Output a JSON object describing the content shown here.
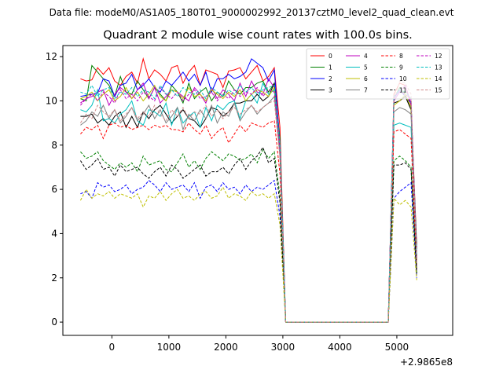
{
  "figure": {
    "suptitle": "Data file: modeM0/AS1A05_180T01_9000002992_20137cztM0_level2_quad_clean.evt",
    "axis_offset_label": "+2.9865e8"
  },
  "chart_data": {
    "type": "line",
    "title": "Quadrant 2 module wise count rates with 100.0s bins.",
    "xlabel": "",
    "ylabel": "",
    "xlim": [
      -860,
      5980
    ],
    "ylim": [
      -0.6,
      12.5
    ],
    "x_ticks": [
      0,
      1000,
      2000,
      3000,
      4000,
      5000
    ],
    "y_ticks": [
      0,
      2,
      4,
      6,
      8,
      10,
      12
    ],
    "grid": false,
    "legend_position": "top-right",
    "legend_columns": 4,
    "x_start": -551,
    "x_step": 100,
    "series": [
      {
        "name": "0",
        "color": "#ff0000",
        "dash": "solid",
        "values": [
          11.0,
          10.9,
          10.95,
          11.5,
          11.2,
          11.5,
          10.9,
          10.7,
          11.1,
          11.3,
          10.8,
          11.9,
          11.0,
          11.4,
          11.2,
          10.9,
          11.5,
          11.6,
          10.8,
          11.3,
          11.6,
          10.7,
          11.4,
          11.3,
          11.2,
          10.6,
          11.35,
          11.4,
          11.5,
          11.0,
          11.3,
          11.6,
          10.9,
          11.1,
          11.5,
          8.8,
          0.0,
          0,
          0,
          0,
          0,
          0,
          0,
          0,
          0,
          0,
          0,
          0,
          0,
          0,
          0,
          0,
          0,
          0,
          0,
          10.3,
          10.8,
          10.7,
          9.8,
          3.5
        ]
      },
      {
        "name": "1",
        "color": "#008000",
        "dash": "solid",
        "values": [
          10.1,
          10.0,
          11.6,
          11.3,
          11.0,
          10.7,
          10.2,
          11.1,
          10.4,
          10.3,
          10.9,
          10.5,
          10.1,
          10.6,
          10.3,
          10.0,
          10.7,
          10.4,
          9.9,
          10.8,
          10.1,
          10.4,
          10.6,
          10.0,
          10.4,
          10.2,
          10.9,
          10.5,
          10.3,
          10.6,
          10.6,
          10.8,
          10.9,
          10.4,
          10.8,
          8.3,
          0.0,
          0,
          0,
          0,
          0,
          0,
          0,
          0,
          0,
          0,
          0,
          0,
          0,
          0,
          0,
          0,
          0,
          0,
          0,
          10.1,
          10.6,
          10.3,
          9.6,
          3.3
        ]
      },
      {
        "name": "2",
        "color": "#0000ff",
        "dash": "solid",
        "values": [
          10.2,
          10.25,
          10.3,
          10.35,
          11.0,
          10.9,
          10.2,
          10.7,
          10.8,
          11.2,
          10.5,
          10.7,
          11.0,
          10.6,
          10.4,
          10.9,
          10.7,
          11.0,
          11.3,
          10.9,
          11.2,
          10.7,
          11.3,
          10.4,
          11.0,
          11.0,
          11.2,
          11.0,
          11.1,
          11.3,
          11.9,
          11.7,
          11.5,
          10.9,
          11.4,
          8.0,
          0.0,
          0,
          0,
          0,
          0,
          0,
          0,
          0,
          0,
          0,
          0,
          0,
          0,
          0,
          0,
          0,
          0,
          0,
          0,
          10.1,
          10.5,
          10.2,
          9.9,
          3.0
        ]
      },
      {
        "name": "3",
        "color": "#000000",
        "dash": "solid",
        "values": [
          9.3,
          9.3,
          9.4,
          9.0,
          9.2,
          8.9,
          9.3,
          9.5,
          8.8,
          9.3,
          8.8,
          9.5,
          9.2,
          9.6,
          9.8,
          9.4,
          9.0,
          9.3,
          9.6,
          9.2,
          9.1,
          8.8,
          9.2,
          9.7,
          9.6,
          9.3,
          9.5,
          9.9,
          9.9,
          10.0,
          10.0,
          10.3,
          10.0,
          10.2,
          10.8,
          7.6,
          0.0,
          0,
          0,
          0,
          0,
          0,
          0,
          0,
          0,
          0,
          0,
          0,
          0,
          0,
          0,
          0,
          0,
          0,
          0,
          9.9,
          10.0,
          10.2,
          9.6,
          2.9
        ]
      },
      {
        "name": "4",
        "color": "#bf00bf",
        "dash": "solid",
        "values": [
          9.9,
          10.1,
          10.2,
          10.4,
          10.5,
          9.8,
          10.3,
          10.6,
          10.4,
          10.1,
          10.5,
          10.8,
          10.1,
          10.6,
          9.9,
          10.2,
          10.5,
          10.4,
          10.2,
          10.0,
          10.6,
          10.3,
          9.9,
          10.6,
          10.1,
          10.5,
          10.3,
          10.0,
          10.8,
          10.2,
          10.9,
          10.4,
          10.3,
          11.0,
          10.6,
          8.0,
          0.0,
          0,
          0,
          0,
          0,
          0,
          0,
          0,
          0,
          0,
          0,
          0,
          0,
          0,
          0,
          0,
          0,
          0,
          0,
          10.0,
          10.4,
          10.7,
          9.9,
          2.8
        ]
      },
      {
        "name": "5",
        "color": "#00bfbf",
        "dash": "solid",
        "values": [
          9.6,
          9.5,
          9.8,
          10.5,
          9.1,
          9.2,
          9.0,
          9.4,
          9.6,
          10.0,
          9.1,
          8.9,
          9.6,
          9.5,
          9.3,
          9.9,
          8.9,
          9.7,
          9.0,
          9.3,
          9.5,
          8.8,
          9.7,
          9.1,
          9.8,
          9.6,
          9.9,
          10.0,
          9.2,
          10.0,
          10.3,
          9.9,
          10.8,
          10.3,
          10.5,
          7.7,
          0.0,
          0,
          0,
          0,
          0,
          0,
          0,
          0,
          0,
          0,
          0,
          0,
          0,
          0,
          0,
          0,
          0,
          0,
          0,
          8.9,
          9.0,
          8.9,
          8.8,
          2.6
        ]
      },
      {
        "name": "6",
        "color": "#bfbf00",
        "dash": "solid",
        "values": [
          10.1,
          10.2,
          10.4,
          10.0,
          10.3,
          10.5,
          10.0,
          10.2,
          10.6,
          10.1,
          10.4,
          10.0,
          10.3,
          10.7,
          10.2,
          10.0,
          10.5,
          10.4,
          10.1,
          10.6,
          10.2,
          10.3,
          10.0,
          10.5,
          10.3,
          10.1,
          10.4,
          10.2,
          10.5,
          10.0,
          10.3,
          10.5,
          10.4,
          10.2,
          10.6,
          7.9,
          0.0,
          0,
          0,
          0,
          0,
          0,
          0,
          0,
          0,
          0,
          0,
          0,
          0,
          0,
          0,
          0,
          0,
          0,
          0,
          9.8,
          10.0,
          10.3,
          9.7,
          2.7
        ]
      },
      {
        "name": "7",
        "color": "#808080",
        "dash": "solid",
        "values": [
          8.9,
          9.1,
          9.5,
          9.3,
          9.8,
          9.2,
          9.6,
          9.0,
          9.3,
          9.7,
          9.1,
          9.4,
          9.8,
          9.2,
          9.6,
          9.0,
          9.3,
          9.7,
          8.7,
          9.4,
          9.1,
          9.6,
          9.2,
          9.8,
          9.0,
          9.5,
          9.3,
          9.9,
          9.1,
          9.5,
          9.8,
          9.4,
          9.7,
          9.9,
          10.2,
          7.5,
          0.0,
          0,
          0,
          0,
          0,
          0,
          0,
          0,
          0,
          0,
          0,
          0,
          0,
          0,
          0,
          0,
          0,
          0,
          0,
          9.5,
          9.7,
          9.6,
          9.4,
          2.5
        ]
      },
      {
        "name": "8",
        "color": "#ff0000",
        "dash": "dashed",
        "values": [
          8.5,
          8.8,
          8.7,
          8.9,
          8.3,
          8.9,
          9.0,
          8.8,
          8.9,
          8.7,
          8.8,
          8.9,
          8.7,
          8.9,
          8.8,
          8.9,
          8.7,
          8.7,
          8.6,
          9.0,
          8.7,
          8.5,
          8.9,
          8.3,
          8.6,
          8.8,
          8.1,
          8.5,
          8.9,
          8.6,
          9.0,
          8.9,
          8.8,
          9.0,
          9.1,
          6.7,
          0.0,
          0,
          0,
          0,
          0,
          0,
          0,
          0,
          0,
          0,
          0,
          0,
          0,
          0,
          0,
          0,
          0,
          0,
          0,
          8.6,
          8.7,
          8.5,
          8.3,
          2.4
        ]
      },
      {
        "name": "9",
        "color": "#008000",
        "dash": "dashed",
        "values": [
          7.7,
          7.4,
          7.5,
          7.7,
          7.3,
          7.1,
          6.9,
          7.2,
          7.0,
          7.2,
          6.8,
          7.5,
          7.1,
          7.2,
          7.3,
          6.9,
          6.8,
          7.2,
          7.6,
          7.0,
          7.3,
          6.9,
          7.4,
          7.7,
          7.5,
          7.3,
          7.6,
          7.5,
          7.3,
          7.4,
          7.6,
          7.2,
          7.8,
          7.4,
          7.7,
          5.7,
          0.0,
          0,
          0,
          0,
          0,
          0,
          0,
          0,
          0,
          0,
          0,
          0,
          0,
          0,
          0,
          0,
          0,
          0,
          0,
          7.3,
          7.5,
          7.3,
          7.0,
          2.2
        ]
      },
      {
        "name": "10",
        "color": "#0000ff",
        "dash": "dashed",
        "values": [
          5.8,
          5.9,
          5.6,
          6.3,
          6.1,
          6.2,
          5.9,
          6.0,
          6.2,
          5.8,
          6.0,
          6.1,
          6.4,
          6.2,
          5.9,
          6.3,
          6.0,
          6.1,
          6.2,
          5.9,
          6.3,
          5.6,
          6.1,
          6.2,
          5.9,
          6.3,
          6.0,
          6.1,
          5.8,
          6.2,
          5.9,
          6.1,
          6.0,
          6.2,
          6.4,
          4.8,
          0.0,
          0,
          0,
          0,
          0,
          0,
          0,
          0,
          0,
          0,
          0,
          0,
          0,
          0,
          0,
          0,
          0,
          0,
          0,
          5.6,
          5.9,
          6.1,
          6.3,
          2.0
        ]
      },
      {
        "name": "11",
        "color": "#000000",
        "dash": "dashed",
        "values": [
          7.3,
          6.9,
          7.1,
          7.4,
          6.9,
          7.0,
          6.6,
          7.1,
          6.8,
          6.9,
          7.0,
          6.7,
          6.5,
          6.8,
          7.0,
          6.6,
          7.1,
          6.9,
          6.5,
          6.7,
          6.9,
          7.1,
          6.6,
          6.8,
          6.8,
          7.0,
          6.7,
          7.1,
          7.4,
          6.9,
          7.3,
          7.5,
          7.9,
          7.2,
          7.4,
          5.4,
          0.0,
          0,
          0,
          0,
          0,
          0,
          0,
          0,
          0,
          0,
          0,
          0,
          0,
          0,
          0,
          0,
          0,
          0,
          0,
          7.1,
          7.1,
          7.2,
          6.9,
          2.2
        ]
      },
      {
        "name": "12",
        "color": "#bf00bf",
        "dash": "dashed",
        "values": [
          9.8,
          10.1,
          10.3,
          10.0,
          10.4,
          10.2,
          9.9,
          10.5,
          10.1,
          10.3,
          10.0,
          10.4,
          10.2,
          10.0,
          10.6,
          10.3,
          10.1,
          10.4,
          10.0,
          10.3,
          10.5,
          10.1,
          10.2,
          10.4,
          10.0,
          10.3,
          10.1,
          10.5,
          10.2,
          10.4,
          10.3,
          10.6,
          10.2,
          10.5,
          10.4,
          7.8,
          0.0,
          0,
          0,
          0,
          0,
          0,
          0,
          0,
          0,
          0,
          0,
          0,
          0,
          0,
          0,
          0,
          0,
          0,
          0,
          10.2,
          10.4,
          10.3,
          10.1,
          2.9
        ]
      },
      {
        "name": "13",
        "color": "#00bfbf",
        "dash": "dashed",
        "values": [
          10.4,
          10.3,
          10.7,
          10.2,
          10.5,
          10.6,
          10.1,
          10.4,
          10.3,
          10.6,
          10.2,
          10.5,
          10.4,
          10.1,
          10.7,
          10.3,
          10.5,
          10.2,
          10.6,
          10.4,
          10.3,
          10.5,
          10.1,
          10.6,
          10.4,
          10.2,
          10.5,
          10.3,
          10.7,
          10.4,
          10.6,
          10.3,
          10.5,
          10.6,
          10.7,
          8.0,
          0.0,
          0,
          0,
          0,
          0,
          0,
          0,
          0,
          0,
          0,
          0,
          0,
          0,
          0,
          0,
          0,
          0,
          0,
          0,
          10.2,
          10.5,
          10.4,
          10.1,
          3.0
        ]
      },
      {
        "name": "14",
        "color": "#bfbf00",
        "dash": "dashed",
        "values": [
          5.5,
          6.0,
          5.6,
          5.8,
          5.7,
          5.9,
          5.6,
          5.8,
          5.7,
          5.6,
          5.8,
          5.2,
          5.7,
          5.6,
          5.9,
          5.5,
          5.8,
          6.0,
          5.6,
          5.7,
          5.5,
          5.8,
          5.9,
          5.6,
          5.7,
          6.1,
          5.6,
          5.8,
          5.7,
          5.5,
          5.9,
          5.7,
          5.8,
          5.6,
          5.8,
          4.4,
          0.0,
          0,
          0,
          0,
          0,
          0,
          0,
          0,
          0,
          0,
          0,
          0,
          0,
          0,
          0,
          0,
          0,
          0,
          0,
          5.6,
          5.3,
          5.5,
          5.2,
          1.9
        ]
      },
      {
        "name": "15",
        "color": "#d08a8a",
        "dash": "dashed",
        "values": [
          9.0,
          9.4,
          9.2,
          9.8,
          9.5,
          9.3,
          9.6,
          9.1,
          9.4,
          9.7,
          9.2,
          9.5,
          9.3,
          9.8,
          9.4,
          9.1,
          9.6,
          9.3,
          9.7,
          9.2,
          9.5,
          9.4,
          9.8,
          9.3,
          9.6,
          9.2,
          9.5,
          9.7,
          9.4,
          9.6,
          9.8,
          9.5,
          9.7,
          9.9,
          10.0,
          7.4,
          0.0,
          0,
          0,
          0,
          0,
          0,
          0,
          0,
          0,
          0,
          0,
          0,
          0,
          0,
          0,
          0,
          0,
          0,
          0,
          10.0,
          10.9,
          10.8,
          10.3,
          2.6
        ]
      }
    ]
  }
}
